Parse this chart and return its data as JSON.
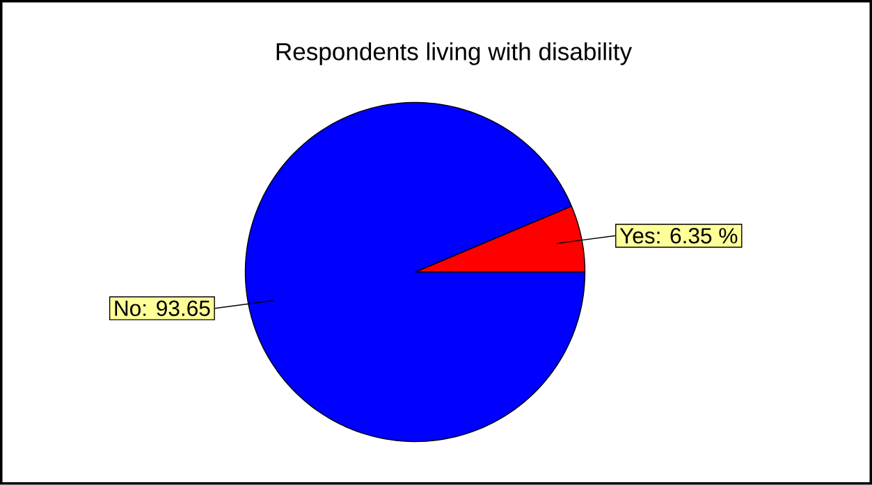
{
  "chart_data": {
    "type": "pie",
    "title": "Respondents living with disability",
    "categories": [
      null,
      null
    ],
    "values": [
      6.35,
      93.65
    ],
    "colors": [
      "#ff0000",
      "#0000ff"
    ],
    "value_labels": [
      "Yes:  6.35 %",
      "No:  93.65"
    ]
  }
}
